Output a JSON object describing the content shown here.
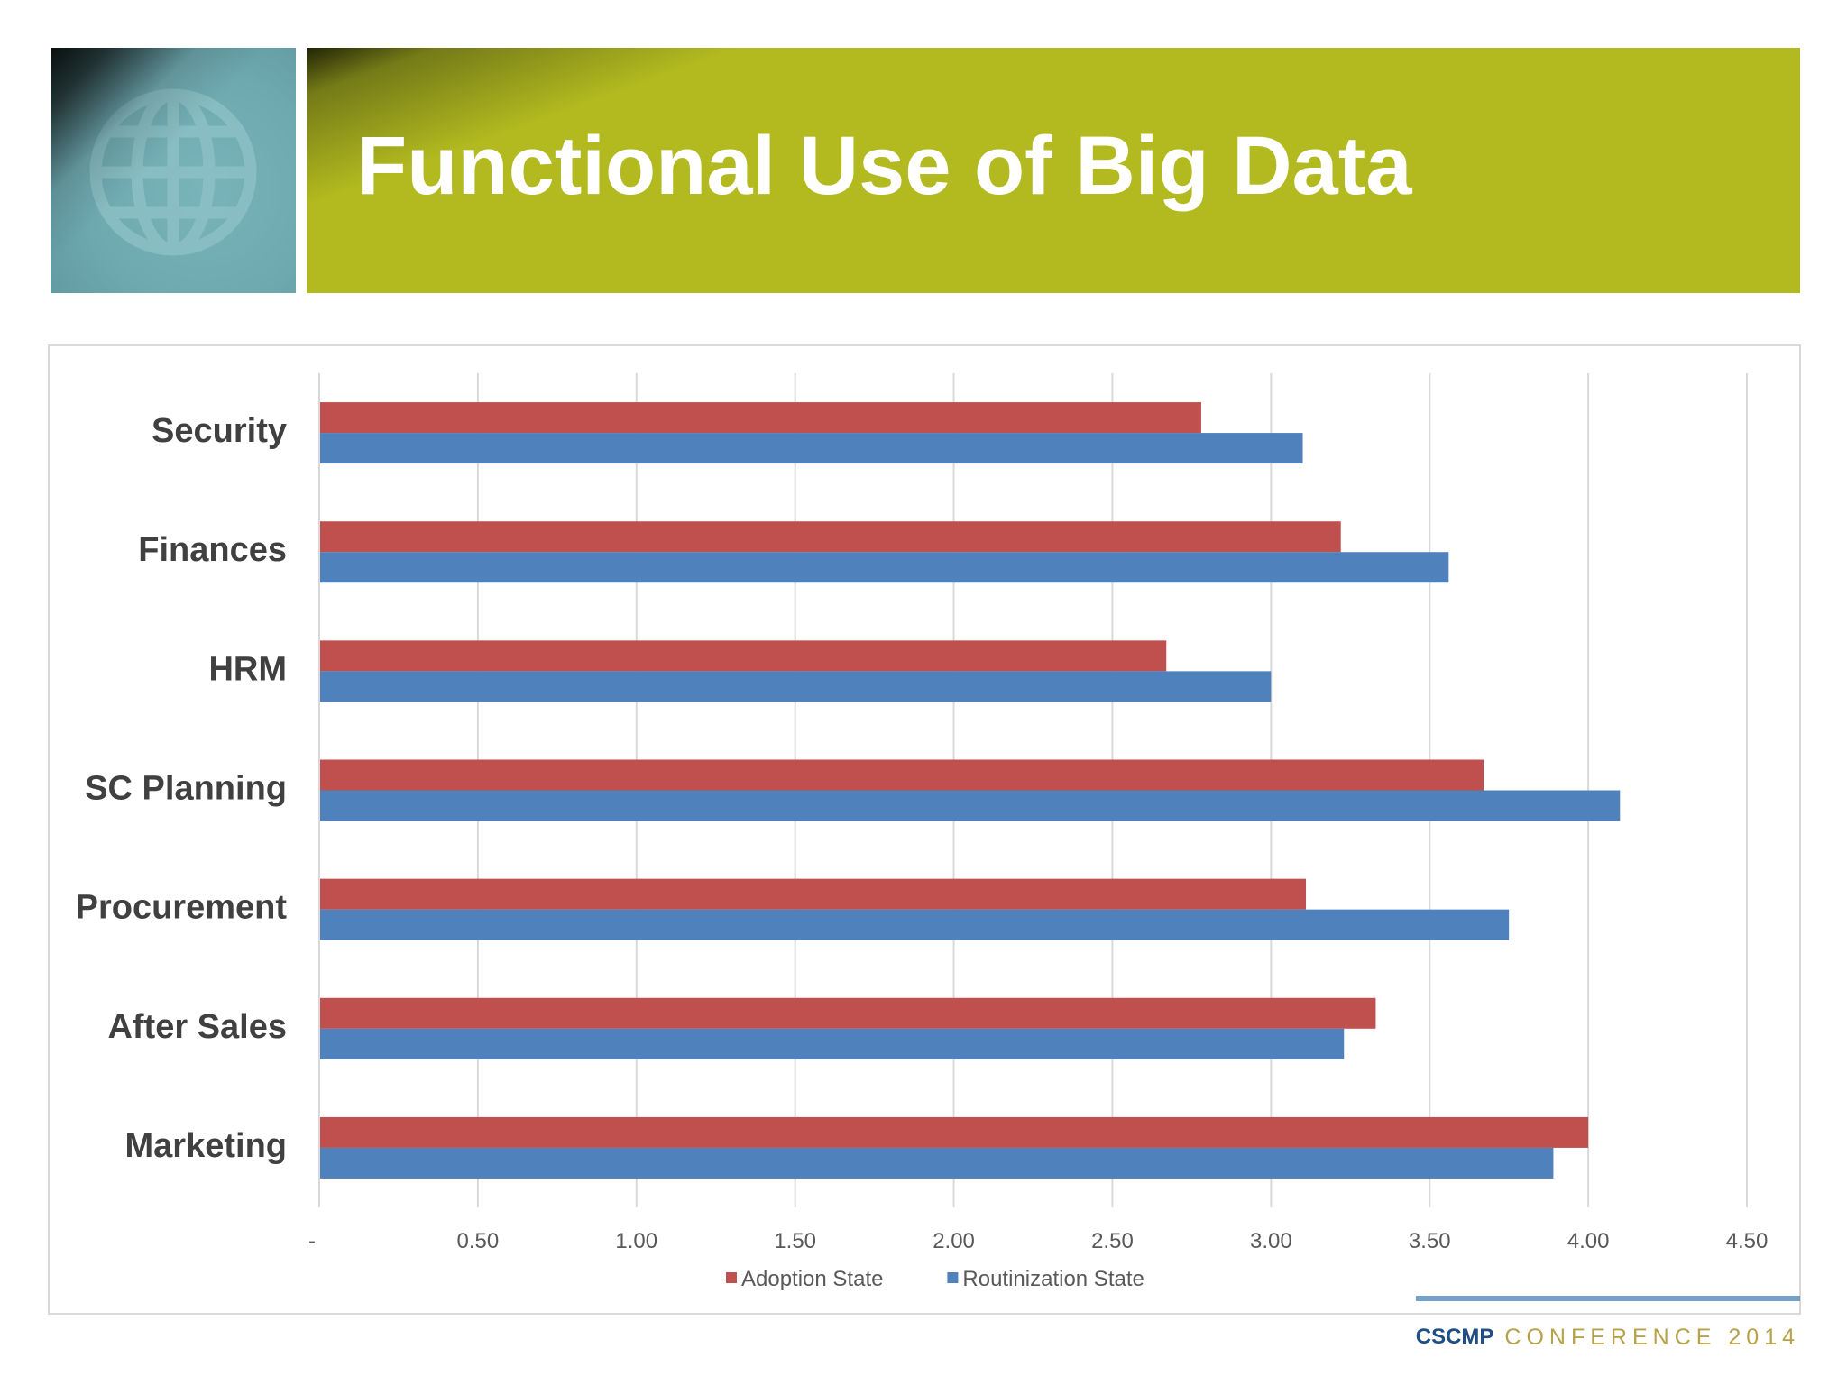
{
  "slide": {
    "title": "Functional Use of Big Data"
  },
  "footer": {
    "organization": "CSCMP",
    "conference": "CONFERENCE 2014"
  },
  "icons": {
    "header": "globe-icon"
  },
  "colors": {
    "title_banner": "#b2ba1f",
    "globe_tile": "#6fa9b0",
    "adoption": "#c0504d",
    "routinization": "#4f81bd"
  },
  "chart_data": {
    "type": "bar",
    "orientation": "horizontal",
    "categories": [
      "Security",
      "Finances",
      "HRM",
      "SC Planning",
      "Procurement",
      "After Sales",
      "Marketing"
    ],
    "series": [
      {
        "name": "Adoption State",
        "color": "#c0504d",
        "values": [
          2.78,
          3.22,
          2.67,
          3.67,
          3.11,
          3.33,
          4.0
        ]
      },
      {
        "name": "Routinization State",
        "color": "#4f81bd",
        "values": [
          3.1,
          3.56,
          3.0,
          4.1,
          3.75,
          3.23,
          3.89
        ]
      }
    ],
    "xlim": [
      0,
      4.5
    ],
    "xticks": [
      0,
      0.5,
      1.0,
      1.5,
      2.0,
      2.5,
      3.0,
      3.5,
      4.0,
      4.5
    ],
    "xtick_labels": [
      "-",
      "0.50",
      "1.00",
      "1.50",
      "2.00",
      "2.50",
      "3.00",
      "3.50",
      "4.00",
      "4.50"
    ],
    "grid": true,
    "legend_position": "bottom"
  }
}
